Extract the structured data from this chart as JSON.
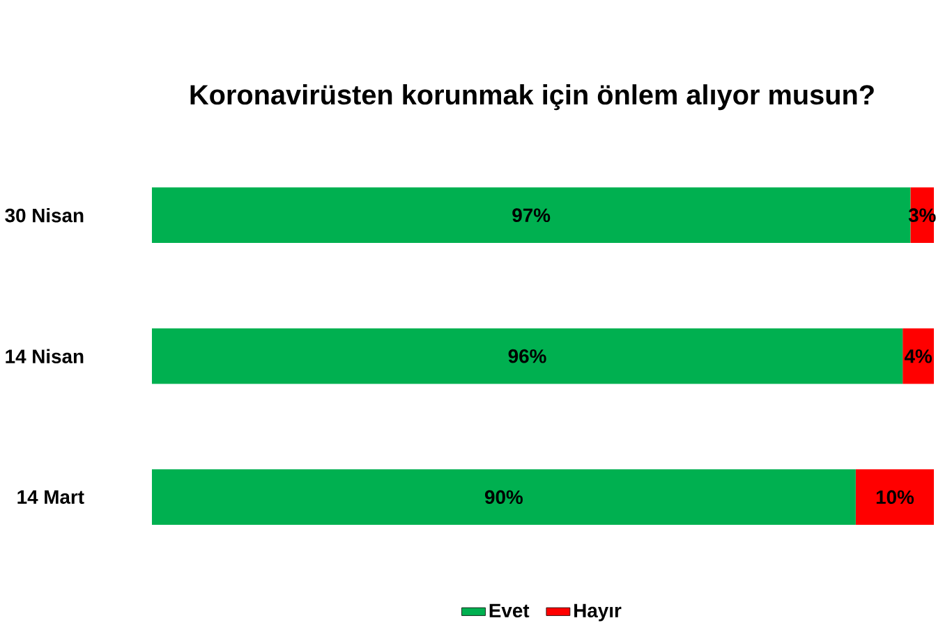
{
  "chart_data": {
    "type": "bar",
    "orientation": "horizontal",
    "stacked": true,
    "title": "Koronavirüsten korunmak için önlem alıyor musun?",
    "categories": [
      "30 Nisan",
      "14 Nisan",
      "14 Mart"
    ],
    "series": [
      {
        "name": "Evet",
        "color": "#00b050",
        "values": [
          97,
          96,
          90
        ],
        "value_labels": [
          "97%",
          "96%",
          "90%"
        ]
      },
      {
        "name": "Hayır",
        "color": "#ff0000",
        "values": [
          3,
          4,
          10
        ],
        "value_labels": [
          "3%",
          "4%",
          "10%"
        ]
      }
    ],
    "legend": "bottom",
    "tick_labels": "y"
  }
}
